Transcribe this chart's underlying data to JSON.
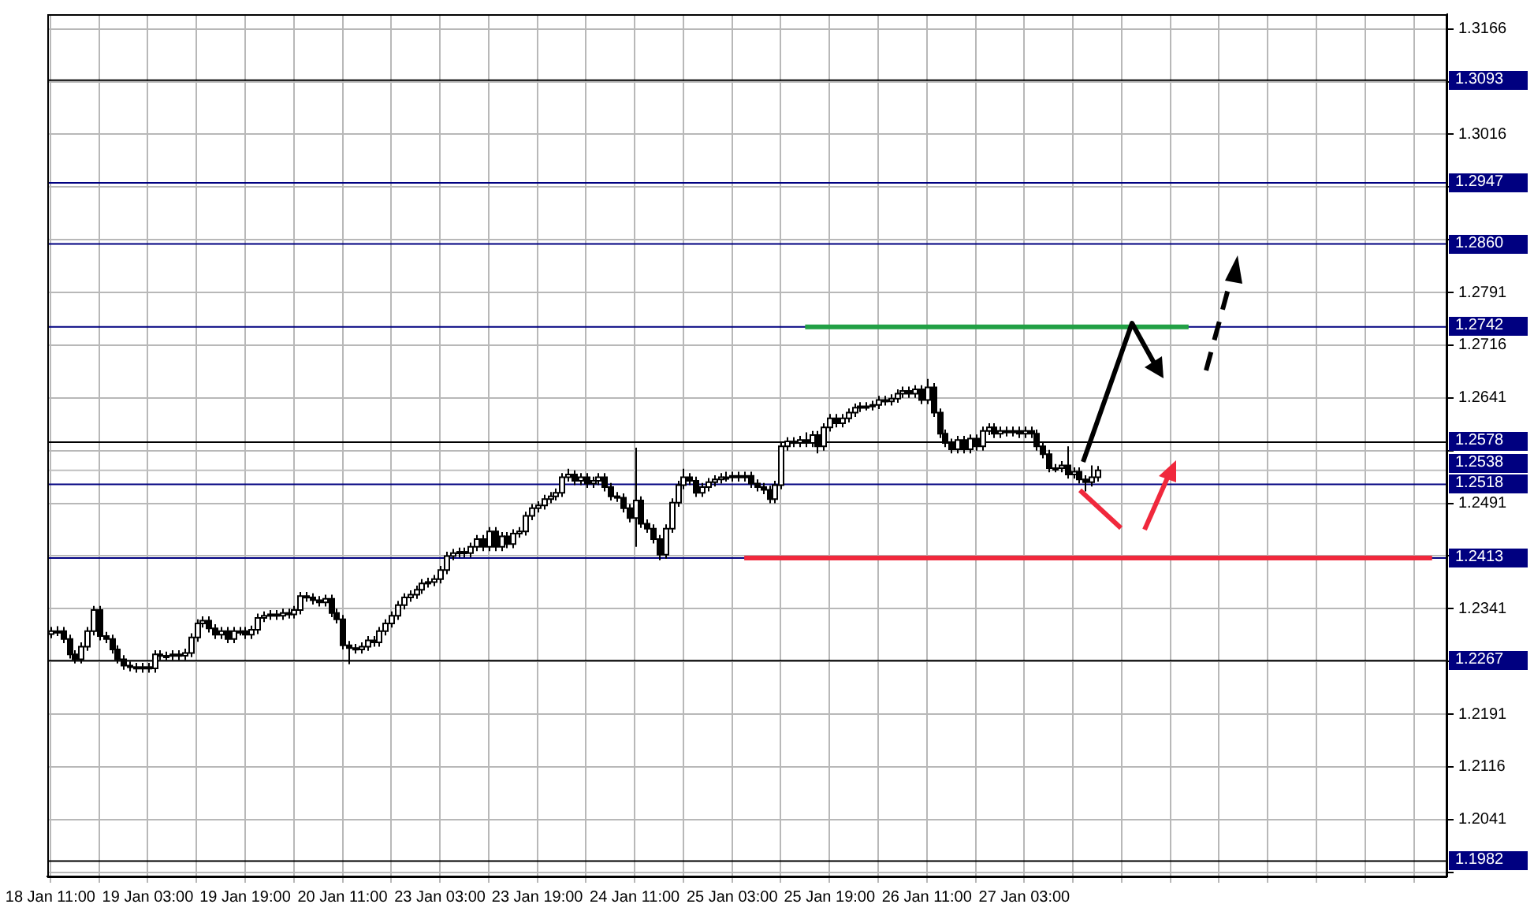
{
  "chart_data": {
    "type": "candlestick",
    "categories": [
      "18 Jan 11:00",
      null,
      null,
      null,
      null,
      null,
      null,
      null,
      null,
      null,
      null,
      null,
      null,
      null,
      null,
      null,
      "19 Jan 03:00",
      null,
      null,
      null,
      null,
      null,
      null,
      null,
      null,
      null,
      null,
      null,
      null,
      null,
      null,
      null,
      "19 Jan 19:00",
      null,
      null,
      null,
      null,
      null,
      null,
      null,
      null,
      null,
      null,
      null,
      null,
      null,
      null,
      null,
      "20 Jan 11:00",
      null,
      null,
      null,
      null,
      null,
      null,
      null,
      null,
      null,
      null,
      null,
      null,
      null,
      null,
      null,
      "23 Jan 03:00",
      null,
      null,
      null,
      null,
      null,
      null,
      null,
      null,
      null,
      null,
      null,
      null,
      null,
      null,
      null,
      "23 Jan 19:00",
      null,
      null,
      null,
      null,
      null,
      null,
      null,
      null,
      null,
      null,
      null,
      null,
      null,
      null,
      null,
      "24 Jan 11:00",
      null,
      null,
      null,
      null,
      null,
      null,
      null,
      null,
      null,
      null,
      null,
      null,
      null,
      null,
      null,
      "25 Jan 03:00",
      null,
      null,
      null,
      null,
      null,
      null,
      null,
      null,
      null,
      null,
      null,
      null,
      null,
      null,
      null,
      "25 Jan 19:00",
      null,
      null,
      null,
      null,
      null,
      null,
      null,
      null,
      null,
      null,
      null,
      null,
      null,
      null,
      null,
      "26 Jan 11:00",
      null,
      null,
      null,
      null,
      null,
      null,
      null,
      null,
      null,
      null,
      null,
      null,
      null,
      null,
      null,
      "27 Jan 03:00",
      null,
      null,
      null,
      null,
      null,
      null,
      null,
      null,
      null,
      null,
      null,
      null,
      null,
      null,
      null,
      null,
      null,
      null,
      null,
      null,
      null,
      null,
      null,
      null,
      null,
      null,
      null,
      null,
      null,
      null,
      null,
      null,
      null,
      null,
      null,
      null,
      null,
      null,
      null,
      null,
      null,
      null,
      null,
      null,
      null,
      null,
      null,
      null,
      null,
      null,
      null,
      null,
      null,
      null,
      null,
      null,
      null,
      null,
      null,
      null,
      null,
      null,
      null,
      null,
      null,
      null,
      null,
      null,
      null
    ],
    "ohlc": [
      [
        1.2305,
        1.2315,
        1.2299,
        1.2309
      ],
      [
        1.2309,
        1.2316,
        1.2302,
        1.2309
      ],
      [
        1.2309,
        1.2315,
        1.2292,
        1.2298
      ],
      [
        1.2298,
        1.2304,
        1.227,
        1.2276
      ],
      [
        1.2276,
        1.2282,
        1.2263,
        1.2269
      ],
      [
        1.2269,
        1.2293,
        1.2263,
        1.2287
      ],
      [
        1.2287,
        1.2315,
        1.2281,
        1.2309
      ],
      [
        1.2309,
        1.2345,
        1.2303,
        1.2339
      ],
      [
        1.2339,
        1.2345,
        1.2296,
        1.2302
      ],
      [
        1.2302,
        1.2308,
        1.2292,
        1.2298
      ],
      [
        1.2298,
        1.2304,
        1.2277,
        1.2283
      ],
      [
        1.2283,
        1.2289,
        1.2263,
        1.2269
      ],
      [
        1.2269,
        1.2275,
        1.2254,
        1.226
      ],
      [
        1.226,
        1.2266,
        1.2252,
        1.2258
      ],
      [
        1.2258,
        1.2264,
        1.225,
        1.2256
      ],
      [
        1.2256,
        1.2264,
        1.225,
        1.2258
      ],
      [
        1.2258,
        1.2264,
        1.225,
        1.2256
      ],
      [
        1.2256,
        1.2282,
        1.225,
        1.2276
      ],
      [
        1.2276,
        1.2282,
        1.2268,
        1.2274
      ],
      [
        1.2274,
        1.228,
        1.2268,
        1.2274
      ],
      [
        1.2274,
        1.2282,
        1.2268,
        1.2276
      ],
      [
        1.2276,
        1.2282,
        1.2268,
        1.2274
      ],
      [
        1.2274,
        1.2284,
        1.2268,
        1.2278
      ],
      [
        1.2278,
        1.2306,
        1.2272,
        1.23
      ],
      [
        1.23,
        1.2326,
        1.2294,
        1.232
      ],
      [
        1.232,
        1.233,
        1.2314,
        1.2324
      ],
      [
        1.2324,
        1.233,
        1.2307,
        1.2313
      ],
      [
        1.2313,
        1.2319,
        1.2298,
        1.2304
      ],
      [
        1.2304,
        1.2315,
        1.2298,
        1.2309
      ],
      [
        1.2309,
        1.2315,
        1.2292,
        1.2298
      ],
      [
        1.2298,
        1.2315,
        1.2292,
        1.2309
      ],
      [
        1.2309,
        1.2315,
        1.2303,
        1.2309
      ],
      [
        1.2309,
        1.2315,
        1.2298,
        1.2304
      ],
      [
        1.2304,
        1.2317,
        1.2298,
        1.2311
      ],
      [
        1.2311,
        1.2334,
        1.2305,
        1.2328
      ],
      [
        1.2328,
        1.2337,
        1.2322,
        1.2331
      ],
      [
        1.2331,
        1.2339,
        1.2325,
        1.2333
      ],
      [
        1.2333,
        1.2339,
        1.2325,
        1.2331
      ],
      [
        1.2331,
        1.2341,
        1.2325,
        1.2335
      ],
      [
        1.2335,
        1.2341,
        1.2327,
        1.2333
      ],
      [
        1.2333,
        1.2345,
        1.2327,
        1.2339
      ],
      [
        1.2339,
        1.2365,
        1.2333,
        1.2359
      ],
      [
        1.2359,
        1.2365,
        1.2351,
        1.2357
      ],
      [
        1.2357,
        1.2363,
        1.2347,
        1.2353
      ],
      [
        1.2353,
        1.2359,
        1.2344,
        1.235
      ],
      [
        1.235,
        1.2361,
        1.2344,
        1.2355
      ],
      [
        1.2355,
        1.2361,
        1.2329,
        1.2335
      ],
      [
        1.2335,
        1.2341,
        1.232,
        1.2326
      ],
      [
        1.2326,
        1.2332,
        1.2283,
        1.2289
      ],
      [
        1.2289,
        1.2295,
        1.2262,
        1.2285
      ],
      [
        1.2285,
        1.2291,
        1.2277,
        1.2283
      ],
      [
        1.2283,
        1.2293,
        1.2277,
        1.2287
      ],
      [
        1.2287,
        1.2302,
        1.2281,
        1.2296
      ],
      [
        1.2296,
        1.2302,
        1.2287,
        1.2293
      ],
      [
        1.2293,
        1.2315,
        1.2287,
        1.2309
      ],
      [
        1.2309,
        1.2326,
        1.2303,
        1.232
      ],
      [
        1.232,
        1.2337,
        1.2314,
        1.2331
      ],
      [
        1.2331,
        1.2352,
        1.2325,
        1.2346
      ],
      [
        1.2346,
        1.2363,
        1.234,
        1.2357
      ],
      [
        1.2357,
        1.2367,
        1.2351,
        1.2361
      ],
      [
        1.2361,
        1.2374,
        1.2355,
        1.2368
      ],
      [
        1.2368,
        1.2383,
        1.2362,
        1.2377
      ],
      [
        1.2377,
        1.2385,
        1.2371,
        1.2379
      ],
      [
        1.2379,
        1.2389,
        1.2373,
        1.2383
      ],
      [
        1.2383,
        1.2402,
        1.2377,
        1.2396
      ],
      [
        1.2396,
        1.2422,
        1.239,
        1.2416
      ],
      [
        1.2416,
        1.2426,
        1.241,
        1.242
      ],
      [
        1.242,
        1.2428,
        1.2414,
        1.2422
      ],
      [
        1.2422,
        1.2428,
        1.2414,
        1.242
      ],
      [
        1.242,
        1.2435,
        1.2414,
        1.2429
      ],
      [
        1.2429,
        1.2446,
        1.2423,
        1.244
      ],
      [
        1.244,
        1.2446,
        1.2423,
        1.2429
      ],
      [
        1.2429,
        1.2457,
        1.2423,
        1.2451
      ],
      [
        1.2451,
        1.2457,
        1.2423,
        1.2429
      ],
      [
        1.2429,
        1.245,
        1.2423,
        1.2444
      ],
      [
        1.2444,
        1.245,
        1.2427,
        1.2433
      ],
      [
        1.2433,
        1.2454,
        1.2427,
        1.2448
      ],
      [
        1.2448,
        1.2457,
        1.2442,
        1.2451
      ],
      [
        1.2451,
        1.2479,
        1.2445,
        1.2473
      ],
      [
        1.2473,
        1.249,
        1.2467,
        1.2484
      ],
      [
        1.2484,
        1.2494,
        1.2478,
        1.2488
      ],
      [
        1.2488,
        1.2503,
        1.2482,
        1.2497
      ],
      [
        1.2497,
        1.2507,
        1.2491,
        1.2501
      ],
      [
        1.2501,
        1.2512,
        1.2495,
        1.2506
      ],
      [
        1.2506,
        1.2534,
        1.25,
        1.2528
      ],
      [
        1.2528,
        1.254,
        1.2522,
        1.2532
      ],
      [
        1.2532,
        1.2538,
        1.2517,
        1.2523
      ],
      [
        1.2523,
        1.2534,
        1.2517,
        1.2528
      ],
      [
        1.2528,
        1.2534,
        1.2513,
        1.2519
      ],
      [
        1.2519,
        1.2529,
        1.2513,
        1.2523
      ],
      [
        1.2523,
        1.2534,
        1.2517,
        1.2528
      ],
      [
        1.2528,
        1.2534,
        1.2508,
        1.2514
      ],
      [
        1.2514,
        1.252,
        1.2495,
        1.2501
      ],
      [
        1.2501,
        1.2507,
        1.2493,
        1.2499
      ],
      [
        1.2499,
        1.2505,
        1.2478,
        1.2484
      ],
      [
        1.2484,
        1.249,
        1.2464,
        1.247
      ],
      [
        1.247,
        1.257,
        1.2429,
        1.2495
      ],
      [
        1.2495,
        1.2501,
        1.2456,
        1.2462
      ],
      [
        1.2462,
        1.2468,
        1.2449,
        1.2455
      ],
      [
        1.2455,
        1.2461,
        1.2434,
        1.244
      ],
      [
        1.244,
        1.2446,
        1.241,
        1.2418
      ],
      [
        1.2418,
        1.2461,
        1.2412,
        1.2455
      ],
      [
        1.2455,
        1.2498,
        1.2449,
        1.2492
      ],
      [
        1.2492,
        1.2523,
        1.2486,
        1.2517
      ],
      [
        1.2517,
        1.254,
        1.2511,
        1.2528
      ],
      [
        1.2528,
        1.2534,
        1.2517,
        1.2523
      ],
      [
        1.2523,
        1.2529,
        1.25,
        1.2506
      ],
      [
        1.2506,
        1.252,
        1.25,
        1.2514
      ],
      [
        1.2514,
        1.2527,
        1.2508,
        1.2521
      ],
      [
        1.2521,
        1.2531,
        1.2515,
        1.2525
      ],
      [
        1.2525,
        1.2534,
        1.2519,
        1.2528
      ],
      [
        1.2528,
        1.2536,
        1.2522,
        1.2528
      ],
      [
        1.2528,
        1.2536,
        1.2522,
        1.253
      ],
      [
        1.253,
        1.2536,
        1.2522,
        1.2528
      ],
      [
        1.2528,
        1.2536,
        1.2522,
        1.253
      ],
      [
        1.253,
        1.2536,
        1.2513,
        1.2519
      ],
      [
        1.2519,
        1.2525,
        1.2508,
        1.2514
      ],
      [
        1.2514,
        1.252,
        1.2504,
        1.251
      ],
      [
        1.251,
        1.2516,
        1.2491,
        1.2497
      ],
      [
        1.2497,
        1.2523,
        1.2491,
        1.2517
      ],
      [
        1.2517,
        1.2578,
        1.2511,
        1.2572
      ],
      [
        1.2572,
        1.2585,
        1.2566,
        1.2579
      ],
      [
        1.2579,
        1.2585,
        1.2571,
        1.2577
      ],
      [
        1.2577,
        1.2587,
        1.2571,
        1.2581
      ],
      [
        1.2581,
        1.2592,
        1.2571,
        1.2577
      ],
      [
        1.2577,
        1.2594,
        1.2571,
        1.2588
      ],
      [
        1.2588,
        1.2594,
        1.2562,
        1.2572
      ],
      [
        1.2572,
        1.2605,
        1.2566,
        1.2599
      ],
      [
        1.2599,
        1.2618,
        1.2593,
        1.2612
      ],
      [
        1.2612,
        1.2618,
        1.2599,
        1.2605
      ],
      [
        1.2605,
        1.2618,
        1.2599,
        1.2612
      ],
      [
        1.2612,
        1.2626,
        1.2606,
        1.262
      ],
      [
        1.262,
        1.2633,
        1.2614,
        1.2627
      ],
      [
        1.2627,
        1.2635,
        1.2621,
        1.2629
      ],
      [
        1.2629,
        1.2635,
        1.2623,
        1.2629
      ],
      [
        1.2629,
        1.2637,
        1.2623,
        1.2631
      ],
      [
        1.2631,
        1.2644,
        1.2625,
        1.2638
      ],
      [
        1.2638,
        1.2644,
        1.263,
        1.2636
      ],
      [
        1.2636,
        1.2646,
        1.263,
        1.264
      ],
      [
        1.264,
        1.2653,
        1.2634,
        1.2647
      ],
      [
        1.2647,
        1.2657,
        1.2641,
        1.2651
      ],
      [
        1.2651,
        1.2657,
        1.2641,
        1.2647
      ],
      [
        1.2647,
        1.2659,
        1.2641,
        1.2653
      ],
      [
        1.2653,
        1.2659,
        1.2632,
        1.2638
      ],
      [
        1.2638,
        1.2668,
        1.2632,
        1.2656
      ],
      [
        1.2656,
        1.2662,
        1.2614,
        1.262
      ],
      [
        1.262,
        1.2626,
        1.2584,
        1.259
      ],
      [
        1.259,
        1.2596,
        1.2571,
        1.2577
      ],
      [
        1.2577,
        1.2583,
        1.2562,
        1.2568
      ],
      [
        1.2568,
        1.2587,
        1.2562,
        1.2581
      ],
      [
        1.2581,
        1.2587,
        1.2562,
        1.2568
      ],
      [
        1.2568,
        1.2589,
        1.2562,
        1.2583
      ],
      [
        1.2583,
        1.2589,
        1.2566,
        1.2572
      ],
      [
        1.2572,
        1.26,
        1.2566,
        1.2594
      ],
      [
        1.2594,
        1.2605,
        1.2588,
        1.2599
      ],
      [
        1.2599,
        1.2605,
        1.2584,
        1.259
      ],
      [
        1.259,
        1.26,
        1.2584,
        1.2594
      ],
      [
        1.2594,
        1.26,
        1.2586,
        1.2592
      ],
      [
        1.2592,
        1.26,
        1.2586,
        1.2594
      ],
      [
        1.2594,
        1.26,
        1.2584,
        1.259
      ],
      [
        1.259,
        1.26,
        1.2584,
        1.2594
      ],
      [
        1.2594,
        1.26,
        1.2584,
        1.259
      ],
      [
        1.259,
        1.2596,
        1.2566,
        1.2572
      ],
      [
        1.2572,
        1.2578,
        1.2555,
        1.2561
      ],
      [
        1.2561,
        1.2567,
        1.2535,
        1.2541
      ],
      [
        1.2541,
        1.2547,
        1.2535,
        1.2541
      ],
      [
        1.2541,
        1.2551,
        1.2535,
        1.2545
      ],
      [
        1.2545,
        1.2572,
        1.2526,
        1.2532
      ],
      [
        1.2532,
        1.2542,
        1.2526,
        1.2536
      ],
      [
        1.2536,
        1.2542,
        1.2519,
        1.2525
      ],
      [
        1.2525,
        1.2531,
        1.2508,
        1.2521
      ],
      [
        1.2521,
        1.2545,
        1.2515,
        1.2528
      ],
      [
        1.2528,
        1.2544,
        1.2522,
        1.2538
      ],
      null,
      null,
      null,
      null,
      null,
      null,
      null,
      null,
      null,
      null,
      null,
      null,
      null,
      null,
      null,
      null,
      null,
      null,
      null,
      null,
      null,
      null,
      null,
      null,
      null,
      null,
      null,
      null,
      null,
      null,
      null,
      null,
      null,
      null,
      null,
      null,
      null,
      null,
      null,
      null,
      null,
      null,
      null,
      null,
      null,
      null,
      null,
      null,
      null,
      null,
      null,
      null,
      null,
      null,
      null,
      null,
      null
    ],
    "series": [
      {
        "type": "line",
        "color": "#22a045",
        "values": [
          null,
          null,
          null,
          null,
          null,
          null,
          null,
          null,
          null,
          null,
          null,
          null,
          null,
          null,
          null,
          null,
          null,
          null,
          null,
          null,
          null,
          null,
          null,
          null,
          null,
          null,
          null,
          null,
          null,
          null,
          null,
          null,
          null,
          null,
          null,
          null,
          null,
          null,
          null,
          null,
          null,
          null,
          null,
          null,
          null,
          null,
          null,
          null,
          null,
          null,
          null,
          null,
          null,
          null,
          null,
          null,
          null,
          null,
          null,
          null,
          null,
          null,
          null,
          null,
          null,
          null,
          null,
          null,
          null,
          null,
          null,
          null,
          null,
          null,
          null,
          null,
          null,
          null,
          null,
          null,
          null,
          null,
          null,
          null,
          null,
          null,
          null,
          null,
          null,
          null,
          null,
          null,
          null,
          null,
          null,
          null,
          null,
          null,
          null,
          null,
          null,
          null,
          null,
          null,
          null,
          null,
          null,
          null,
          null,
          null,
          null,
          null,
          null,
          null,
          null,
          null,
          null,
          null,
          null,
          null,
          null,
          null,
          null,
          null,
          1.2742,
          1.2742,
          1.2742,
          1.2742,
          1.2742,
          1.2742,
          1.2742,
          1.2742,
          1.2742,
          1.2742,
          1.2742,
          1.2742,
          1.2742,
          1.2742,
          1.2742,
          1.2742,
          1.2742,
          1.2742,
          1.2742,
          1.2742,
          1.2742,
          1.2742,
          1.2742,
          1.2742,
          1.2742,
          1.2742,
          1.2742,
          1.2742,
          1.2742,
          1.2742,
          1.2742,
          1.2742,
          1.2742,
          1.2742,
          1.2742,
          1.2742,
          1.2742,
          1.2742,
          1.2742,
          1.2742,
          1.2742,
          1.2742,
          1.2742,
          1.2742,
          1.2742,
          1.2742,
          1.2742,
          1.2742,
          1.2742,
          1.2742,
          1.2742,
          1.2742,
          1.2742,
          1.2742,
          1.2742,
          1.2742,
          1.2742,
          1.2742,
          1.2742,
          1.2742,
          1.2742,
          1.2742,
          1.2742,
          1.2742,
          null,
          null,
          null,
          null,
          null,
          null,
          null,
          null,
          null,
          null,
          null,
          null,
          null,
          null,
          null,
          null,
          null,
          null,
          null,
          null,
          null,
          null,
          null,
          null,
          null,
          null,
          null,
          null,
          null,
          null,
          null,
          null,
          null,
          null,
          null,
          null,
          null,
          null,
          null,
          null,
          null,
          null
        ]
      },
      {
        "type": "line",
        "color": "#f0283c",
        "values": [
          null,
          null,
          null,
          null,
          null,
          null,
          null,
          null,
          null,
          null,
          null,
          null,
          null,
          null,
          null,
          null,
          null,
          null,
          null,
          null,
          null,
          null,
          null,
          null,
          null,
          null,
          null,
          null,
          null,
          null,
          null,
          null,
          null,
          null,
          null,
          null,
          null,
          null,
          null,
          null,
          null,
          null,
          null,
          null,
          null,
          null,
          null,
          null,
          null,
          null,
          null,
          null,
          null,
          null,
          null,
          null,
          null,
          null,
          null,
          null,
          null,
          null,
          null,
          null,
          null,
          null,
          null,
          null,
          null,
          null,
          null,
          null,
          null,
          null,
          null,
          null,
          null,
          null,
          null,
          null,
          null,
          null,
          null,
          null,
          null,
          null,
          null,
          null,
          null,
          null,
          null,
          null,
          null,
          null,
          null,
          null,
          null,
          null,
          null,
          null,
          null,
          null,
          null,
          null,
          null,
          null,
          null,
          null,
          null,
          null,
          null,
          null,
          null,
          null,
          1.2413,
          1.2413,
          1.2413,
          1.2413,
          1.2413,
          1.2413,
          1.2413,
          1.2413,
          1.2413,
          1.2413,
          1.2413,
          1.2413,
          1.2413,
          1.2413,
          1.2413,
          1.2413,
          1.2413,
          1.2413,
          1.2413,
          1.2413,
          1.2413,
          1.2413,
          1.2413,
          1.2413,
          1.2413,
          1.2413,
          1.2413,
          1.2413,
          1.2413,
          1.2413,
          1.2413,
          1.2413,
          1.2413,
          1.2413,
          1.2413,
          1.2413,
          1.2413,
          1.2413,
          1.2413,
          1.2413,
          1.2413,
          1.2413,
          1.2413,
          1.2413,
          1.2413,
          1.2413,
          1.2413,
          1.2413,
          1.2413,
          1.2413,
          1.2413,
          1.2413,
          1.2413,
          1.2413,
          1.2413,
          1.2413,
          1.2413,
          1.2413,
          1.2413,
          1.2413,
          1.2413,
          1.2413,
          1.2413,
          1.2413,
          1.2413,
          1.2413,
          1.2413,
          1.2413,
          1.2413,
          1.2413,
          1.2413,
          1.2413,
          1.2413,
          1.2413,
          1.2413,
          1.2413,
          1.2413,
          1.2413,
          1.2413,
          1.2413,
          1.2413,
          1.2413,
          1.2413,
          1.2413,
          1.2413,
          1.2413,
          1.2413,
          1.2413,
          1.2413,
          1.2413,
          1.2413,
          1.2413,
          1.2413,
          1.2413,
          1.2413,
          1.2413,
          1.2413,
          1.2413,
          1.2413,
          1.2413,
          1.2413,
          1.2413,
          1.2413,
          1.2413,
          1.2413,
          1.2413,
          1.2413,
          1.2413,
          1.2413,
          1.2413,
          1.2413,
          1.2413,
          1.2413,
          1.2413,
          null,
          null
        ]
      }
    ],
    "ref_lines": [
      {
        "axis": "y",
        "value": 1.3093,
        "label": "1.3093",
        "color": "#000000"
      },
      {
        "axis": "y",
        "value": 1.2947,
        "label": "1.2947",
        "color": "#000080"
      },
      {
        "axis": "y",
        "value": 1.286,
        "label": "1.2860",
        "color": "#000080"
      },
      {
        "axis": "y",
        "value": 1.2742,
        "label": "1.2742",
        "color": "#000080"
      },
      {
        "axis": "y",
        "value": 1.2578,
        "label": "1.2578",
        "color": "#000000"
      },
      {
        "axis": "y",
        "value": 1.2538,
        "label": "1.2538",
        "color": "#c0c0c0"
      },
      {
        "axis": "y",
        "value": 1.2518,
        "label": "1.2518",
        "color": "#000080"
      },
      {
        "axis": "y",
        "value": 1.2413,
        "label": "1.2413",
        "color": "#000080"
      },
      {
        "axis": "y",
        "value": 1.2267,
        "label": "1.2267",
        "color": "#000000"
      },
      {
        "axis": "y",
        "value": 1.1982,
        "label": "1.1982",
        "color": "#000000"
      }
    ],
    "ylim": [
      1.196,
      1.3187
    ],
    "yticks": [
      {
        "value": 1.1966,
        "label": null
      },
      1.2041,
      1.2116,
      1.2191,
      {
        "value": 1.2266,
        "label": null
      },
      1.2341,
      {
        "value": 1.2416,
        "label": null
      },
      1.2491,
      {
        "value": 1.2566,
        "label": null
      },
      1.2641,
      1.2716,
      1.2791,
      {
        "value": 1.2866,
        "label": null
      },
      {
        "value": 1.2941,
        "label": null
      },
      1.3016,
      {
        "value": 1.3091,
        "label": null
      },
      1.3166
    ],
    "grid": true
  }
}
